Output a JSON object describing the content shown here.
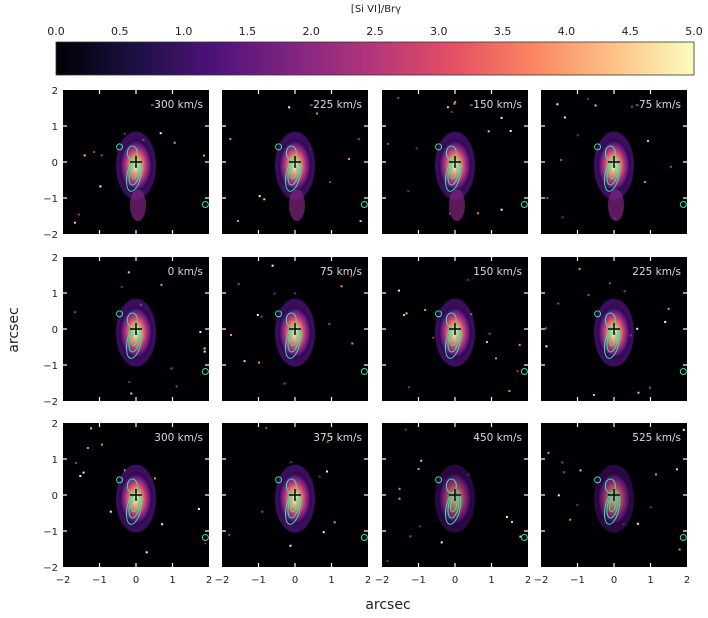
{
  "figure": {
    "colorbar_label": "[Si VI]/Brγ",
    "xlabel": "arcsec",
    "ylabel": "arcsec"
  },
  "chart_data": {
    "type": "heatmap",
    "colorbar": {
      "label": "[Si VI]/Brγ",
      "range": [
        0.0,
        5.0
      ],
      "ticks": [
        "0.0",
        "0.5",
        "1.0",
        "1.5",
        "2.0",
        "2.5",
        "3.0",
        "3.5",
        "4.0",
        "4.5",
        "5.0"
      ],
      "colormap": [
        "#000004",
        "#1c1044",
        "#4f127b",
        "#812581",
        "#b5367a",
        "#e55064",
        "#fb8761",
        "#fec287",
        "#fcfdbf"
      ]
    },
    "xlim": [
      -2,
      2
    ],
    "ylim": [
      -2,
      2
    ],
    "xticks": [
      "−2",
      "−1",
      "0",
      "1",
      "2"
    ],
    "yticks": [
      "2",
      "1",
      "0",
      "−1",
      "−2"
    ],
    "grid": false,
    "contour_color": "#2ee8a6",
    "center_marker": [
      0,
      0
    ],
    "panels": [
      {
        "velocity": "-300 km/s"
      },
      {
        "velocity": "-225 km/s"
      },
      {
        "velocity": "-150 km/s"
      },
      {
        "velocity": "-75 km/s"
      },
      {
        "velocity": "0 km/s"
      },
      {
        "velocity": "75 km/s"
      },
      {
        "velocity": "150 km/s"
      },
      {
        "velocity": "225 km/s"
      },
      {
        "velocity": "300 km/s"
      },
      {
        "velocity": "375 km/s"
      },
      {
        "velocity": "450 km/s"
      },
      {
        "velocity": "525 km/s"
      }
    ]
  }
}
